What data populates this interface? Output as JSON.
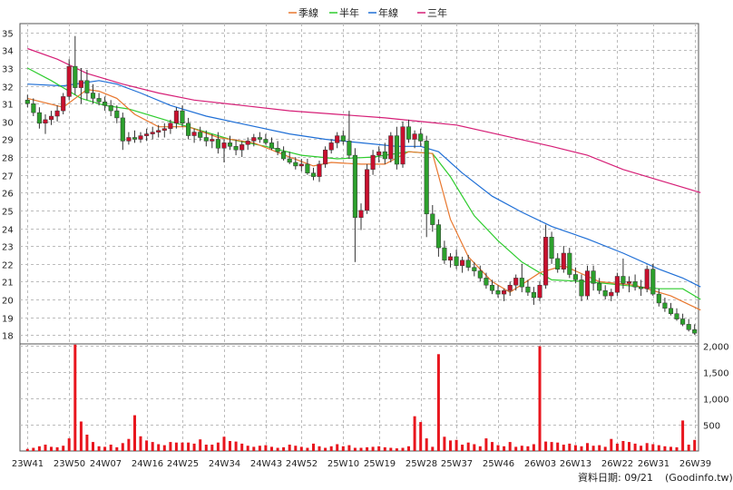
{
  "chart_data": {
    "type": "candlestick",
    "legend": {
      "placement": "top-center",
      "entries": [
        {
          "name": "季線",
          "color": "#e8772e"
        },
        {
          "name": "半年",
          "color": "#2ecc2e"
        },
        {
          "name": "年線",
          "color": "#1f6fd6"
        },
        {
          "name": "三年",
          "color": "#d61f77"
        }
      ]
    },
    "price_axis": {
      "ylim": [
        17.5,
        35.5
      ],
      "ticks": [
        18,
        19,
        20,
        21,
        22,
        23,
        24,
        25,
        26,
        27,
        28,
        29,
        30,
        31,
        32,
        33,
        34,
        35
      ],
      "side": "left"
    },
    "volume_axis": {
      "ylim": [
        0,
        2000
      ],
      "ticks": [
        500,
        1000,
        1500,
        2000
      ],
      "tick_labels": [
        "500",
        "1,000",
        "1,500",
        "2,000"
      ],
      "side": "right"
    },
    "x_labels": [
      "23W41",
      "23W50",
      "24W07",
      "24W16",
      "24W25",
      "24W34",
      "24W43",
      "24W52",
      "25W10",
      "25W19",
      "25W28",
      "25W37",
      "25W46",
      "26W03",
      "26W13",
      "26W22",
      "26W31",
      "26W39"
    ],
    "grid": true,
    "up_color": "#2ca02c",
    "down_color": "#c8102e",
    "volume_color": "#e8161e",
    "candles": [
      [
        31.2,
        31.5,
        30.8,
        31.0
      ],
      [
        31.0,
        31.3,
        30.3,
        30.5
      ],
      [
        30.5,
        30.8,
        29.6,
        29.9
      ],
      [
        29.9,
        30.4,
        29.3,
        30.1
      ],
      [
        30.1,
        30.6,
        29.8,
        30.3
      ],
      [
        30.3,
        30.9,
        30.0,
        30.6
      ],
      [
        30.6,
        31.6,
        30.4,
        31.4
      ],
      [
        31.4,
        33.5,
        31.2,
        33.1
      ],
      [
        33.1,
        34.8,
        31.5,
        31.9
      ],
      [
        31.9,
        33.0,
        31.0,
        32.3
      ],
      [
        32.3,
        32.9,
        31.2,
        31.6
      ],
      [
        31.6,
        32.1,
        31.0,
        31.3
      ],
      [
        31.3,
        31.6,
        30.9,
        31.1
      ],
      [
        31.1,
        31.4,
        30.6,
        30.9
      ],
      [
        30.9,
        31.2,
        30.3,
        30.6
      ],
      [
        30.6,
        30.9,
        29.9,
        30.2
      ],
      [
        30.2,
        30.5,
        28.4,
        28.9
      ],
      [
        28.9,
        29.4,
        28.7,
        29.1
      ],
      [
        29.1,
        29.5,
        28.8,
        29.0
      ],
      [
        29.0,
        29.4,
        28.8,
        29.2
      ],
      [
        29.2,
        29.6,
        28.9,
        29.3
      ],
      [
        29.3,
        29.7,
        29.0,
        29.4
      ],
      [
        29.4,
        29.8,
        29.1,
        29.5
      ],
      [
        29.5,
        29.9,
        29.1,
        29.6
      ],
      [
        29.6,
        30.1,
        29.3,
        29.9
      ],
      [
        29.9,
        30.8,
        29.6,
        30.6
      ],
      [
        30.6,
        30.9,
        29.7,
        29.9
      ],
      [
        29.9,
        30.2,
        29.0,
        29.2
      ],
      [
        29.2,
        29.6,
        28.8,
        29.4
      ],
      [
        29.4,
        29.7,
        28.9,
        29.1
      ],
      [
        29.1,
        29.5,
        28.6,
        28.9
      ],
      [
        28.9,
        29.3,
        28.5,
        29.0
      ],
      [
        29.0,
        29.4,
        28.2,
        28.5
      ],
      [
        28.5,
        29.0,
        27.7,
        28.8
      ],
      [
        28.8,
        29.2,
        28.4,
        28.6
      ],
      [
        28.6,
        29.0,
        28.1,
        28.4
      ],
      [
        28.4,
        28.9,
        28.0,
        28.7
      ],
      [
        28.7,
        29.1,
        28.4,
        28.9
      ],
      [
        28.9,
        29.3,
        28.6,
        29.1
      ],
      [
        29.1,
        29.4,
        28.8,
        29.0
      ],
      [
        29.0,
        29.3,
        28.7,
        28.8
      ],
      [
        28.8,
        29.1,
        28.4,
        28.5
      ],
      [
        28.5,
        28.9,
        28.1,
        28.3
      ],
      [
        28.3,
        28.6,
        27.8,
        27.9
      ],
      [
        27.9,
        28.3,
        27.6,
        27.7
      ],
      [
        27.7,
        28.0,
        27.3,
        27.5
      ],
      [
        27.5,
        27.9,
        27.2,
        27.6
      ],
      [
        27.6,
        27.9,
        27.0,
        27.1
      ],
      [
        27.1,
        27.4,
        26.7,
        26.9
      ],
      [
        26.9,
        27.8,
        26.6,
        27.6
      ],
      [
        27.6,
        28.6,
        27.4,
        28.4
      ],
      [
        28.4,
        29.0,
        28.2,
        28.8
      ],
      [
        28.8,
        29.4,
        28.5,
        29.2
      ],
      [
        29.2,
        29.5,
        28.7,
        28.9
      ],
      [
        28.9,
        30.6,
        27.9,
        28.1
      ],
      [
        28.1,
        28.5,
        22.1,
        24.6
      ],
      [
        24.6,
        25.4,
        23.9,
        25.0
      ],
      [
        25.0,
        27.6,
        24.8,
        27.3
      ],
      [
        27.3,
        28.4,
        27.0,
        28.1
      ],
      [
        28.1,
        28.6,
        27.7,
        28.3
      ],
      [
        28.3,
        28.8,
        27.6,
        27.9
      ],
      [
        27.9,
        29.4,
        27.7,
        29.2
      ],
      [
        29.2,
        29.7,
        27.3,
        27.6
      ],
      [
        27.6,
        30.0,
        27.4,
        29.7
      ],
      [
        29.7,
        30.1,
        28.8,
        29.0
      ],
      [
        29.0,
        29.5,
        28.5,
        29.3
      ],
      [
        29.3,
        29.6,
        28.6,
        28.9
      ],
      [
        28.9,
        29.2,
        23.5,
        24.8
      ],
      [
        24.8,
        25.3,
        23.8,
        24.2
      ],
      [
        24.2,
        24.5,
        22.4,
        22.9
      ],
      [
        22.9,
        23.3,
        22.0,
        22.2
      ],
      [
        22.2,
        22.6,
        21.8,
        22.4
      ],
      [
        22.4,
        22.8,
        21.7,
        21.9
      ],
      [
        21.9,
        22.4,
        21.5,
        22.2
      ],
      [
        22.2,
        22.5,
        21.6,
        21.8
      ],
      [
        21.8,
        22.1,
        21.3,
        21.6
      ],
      [
        21.6,
        21.9,
        21.0,
        21.2
      ],
      [
        21.2,
        21.5,
        20.6,
        20.8
      ],
      [
        20.8,
        21.1,
        20.3,
        20.5
      ],
      [
        20.5,
        20.8,
        20.1,
        20.3
      ],
      [
        20.3,
        20.6,
        19.9,
        20.5
      ],
      [
        20.5,
        21.0,
        20.2,
        20.8
      ],
      [
        20.8,
        21.4,
        20.5,
        21.2
      ],
      [
        21.2,
        22.0,
        20.4,
        20.7
      ],
      [
        20.7,
        21.1,
        20.2,
        20.4
      ],
      [
        20.4,
        20.7,
        19.7,
        20.1
      ],
      [
        20.1,
        21.0,
        19.9,
        20.8
      ],
      [
        20.8,
        24.2,
        20.6,
        23.5
      ],
      [
        23.5,
        23.8,
        22.0,
        22.3
      ],
      [
        22.3,
        22.6,
        21.5,
        21.7
      ],
      [
        21.7,
        23.0,
        21.5,
        22.6
      ],
      [
        22.6,
        22.9,
        21.2,
        21.4
      ],
      [
        21.4,
        21.8,
        20.9,
        21.1
      ],
      [
        21.1,
        21.4,
        19.9,
        20.2
      ],
      [
        20.2,
        21.9,
        20.0,
        21.6
      ],
      [
        21.6,
        21.9,
        20.5,
        20.9
      ],
      [
        20.9,
        21.2,
        20.3,
        20.5
      ],
      [
        20.5,
        20.8,
        20.0,
        20.2
      ],
      [
        20.2,
        20.6,
        19.9,
        20.4
      ],
      [
        20.4,
        21.5,
        20.2,
        21.3
      ],
      [
        21.3,
        22.3,
        20.6,
        20.9
      ],
      [
        20.9,
        21.3,
        20.4,
        21.0
      ],
      [
        21.0,
        21.4,
        20.5,
        20.7
      ],
      [
        20.7,
        21.1,
        20.2,
        20.6
      ],
      [
        20.6,
        21.9,
        20.4,
        21.7
      ],
      [
        21.7,
        22.0,
        20.2,
        20.3
      ],
      [
        20.3,
        20.6,
        19.6,
        19.8
      ],
      [
        19.8,
        20.1,
        19.3,
        19.5
      ],
      [
        19.5,
        19.8,
        19.1,
        19.2
      ],
      [
        19.2,
        19.5,
        18.8,
        18.9
      ],
      [
        18.9,
        19.2,
        18.5,
        18.6
      ],
      [
        18.6,
        18.9,
        18.2,
        18.3
      ],
      [
        18.3,
        18.6,
        18.0,
        18.1
      ]
    ],
    "volume": [
      40,
      60,
      90,
      120,
      80,
      70,
      100,
      240,
      2020,
      560,
      310,
      170,
      90,
      80,
      120,
      70,
      150,
      230,
      680,
      280,
      200,
      170,
      130,
      110,
      170,
      160,
      160,
      160,
      140,
      220,
      120,
      120,
      160,
      270,
      190,
      180,
      140,
      100,
      80,
      100,
      110,
      80,
      60,
      70,
      120,
      100,
      80,
      60,
      140,
      90,
      60,
      90,
      130,
      90,
      110,
      60,
      60,
      70,
      80,
      90,
      70,
      60,
      50,
      60,
      90,
      660,
      550,
      240,
      80,
      1840,
      270,
      200,
      210,
      120,
      160,
      130,
      90,
      240,
      170,
      110,
      90,
      170,
      80,
      100,
      90,
      130,
      1990,
      180,
      170,
      160,
      120,
      140,
      110,
      90,
      150,
      100,
      110,
      80,
      230,
      140,
      190,
      170,
      140,
      100,
      150,
      130,
      110,
      90,
      80,
      70,
      580,
      120,
      210,
      560
    ],
    "ma_quarter": [
      [
        0,
        31.3
      ],
      [
        6,
        30.8
      ],
      [
        10,
        31.8
      ],
      [
        12,
        31.7
      ],
      [
        15,
        31.3
      ],
      [
        18,
        30.4
      ],
      [
        22,
        29.7
      ],
      [
        27,
        29.7
      ],
      [
        32,
        29.1
      ],
      [
        38,
        28.8
      ],
      [
        44,
        28.0
      ],
      [
        48,
        27.5
      ],
      [
        51,
        27.7
      ],
      [
        56,
        27.6
      ],
      [
        60,
        27.6
      ],
      [
        64,
        28.3
      ],
      [
        68,
        28.2
      ],
      [
        71,
        24.5
      ],
      [
        74,
        22.4
      ],
      [
        78,
        21.0
      ],
      [
        81,
        20.4
      ],
      [
        86,
        21.5
      ],
      [
        90,
        21.9
      ],
      [
        96,
        21.0
      ],
      [
        102,
        20.8
      ],
      [
        108,
        20.2
      ],
      [
        113,
        19.4
      ]
    ],
    "ma_half": [
      [
        0,
        33.0
      ],
      [
        4,
        32.3
      ],
      [
        9,
        31.3
      ],
      [
        13,
        30.9
      ],
      [
        17,
        30.7
      ],
      [
        22,
        30.2
      ],
      [
        28,
        29.6
      ],
      [
        34,
        29.0
      ],
      [
        40,
        28.6
      ],
      [
        46,
        28.1
      ],
      [
        52,
        27.9
      ],
      [
        58,
        28.0
      ],
      [
        64,
        28.3
      ],
      [
        68,
        28.2
      ],
      [
        71,
        26.9
      ],
      [
        75,
        24.7
      ],
      [
        79,
        23.3
      ],
      [
        83,
        22.1
      ],
      [
        88,
        21.1
      ],
      [
        94,
        21.0
      ],
      [
        100,
        20.8
      ],
      [
        106,
        20.6
      ],
      [
        110,
        20.6
      ],
      [
        113,
        20.0
      ]
    ],
    "ma_year": [
      [
        0,
        32.1
      ],
      [
        6,
        32.0
      ],
      [
        12,
        32.3
      ],
      [
        15,
        32.1
      ],
      [
        19,
        31.6
      ],
      [
        24,
        30.9
      ],
      [
        30,
        30.3
      ],
      [
        37,
        29.8
      ],
      [
        44,
        29.3
      ],
      [
        50,
        29.0
      ],
      [
        56,
        28.8
      ],
      [
        62,
        28.6
      ],
      [
        66,
        28.6
      ],
      [
        69,
        28.3
      ],
      [
        73,
        27.1
      ],
      [
        78,
        25.8
      ],
      [
        83,
        24.9
      ],
      [
        88,
        24.1
      ],
      [
        94,
        23.4
      ],
      [
        100,
        22.6
      ],
      [
        106,
        21.7
      ],
      [
        110,
        21.2
      ],
      [
        113,
        20.7
      ]
    ],
    "ma_three": [
      [
        0,
        34.1
      ],
      [
        5,
        33.5
      ],
      [
        10,
        32.7
      ],
      [
        16,
        32.1
      ],
      [
        22,
        31.6
      ],
      [
        28,
        31.2
      ],
      [
        36,
        30.9
      ],
      [
        44,
        30.6
      ],
      [
        52,
        30.4
      ],
      [
        60,
        30.2
      ],
      [
        66,
        30.0
      ],
      [
        72,
        29.8
      ],
      [
        80,
        29.2
      ],
      [
        88,
        28.6
      ],
      [
        94,
        28.1
      ],
      [
        100,
        27.3
      ],
      [
        106,
        26.7
      ],
      [
        113,
        26.0
      ]
    ]
  },
  "footer": {
    "date_label": "資料日期: 09/21",
    "source": "(Goodinfo.tw)"
  }
}
